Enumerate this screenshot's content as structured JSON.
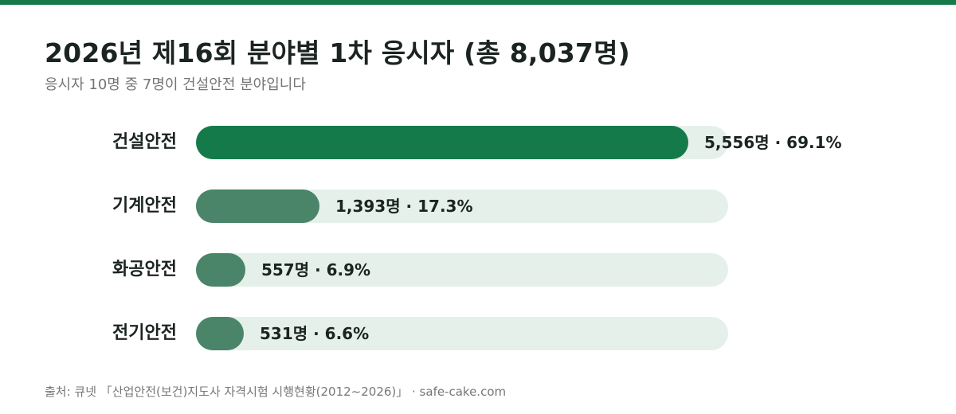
{
  "colors": {
    "accent": "#157a4a",
    "top_bar": "#157a4a",
    "primary_bar": "#157a4a",
    "secondary_bar": "#4a8469",
    "track": "#e6f0ea"
  },
  "header": {
    "title": "2026년 제16회 분야별 1차 응시자 (총 8,037명)",
    "subtitle": "응시자 10명 중 7명이 건설안전 분야입니다"
  },
  "footer": {
    "source": "출처: 큐넷 「산업안전(보건)지도사 자격시험 시행현황(2012~2026)」 · safe-cake.com"
  },
  "chart_data": {
    "type": "bar",
    "orientation": "horizontal",
    "title": "2026년 제16회 분야별 1차 응시자 (총 8,037명)",
    "subtitle": "응시자 10명 중 7명이 건설안전 분야입니다",
    "categories": [
      "건설안전",
      "기계안전",
      "화공안전",
      "전기안전"
    ],
    "values": [
      5556,
      1393,
      557,
      531
    ],
    "percents": [
      69.1,
      17.3,
      6.9,
      6.6
    ],
    "value_labels": [
      "5,556명 · 69.1%",
      "1,393명 · 17.3%",
      "557명 · 6.9%",
      "531명 · 6.6%"
    ],
    "xlim": [
      0,
      6000
    ],
    "grid": false,
    "legend": "none"
  }
}
